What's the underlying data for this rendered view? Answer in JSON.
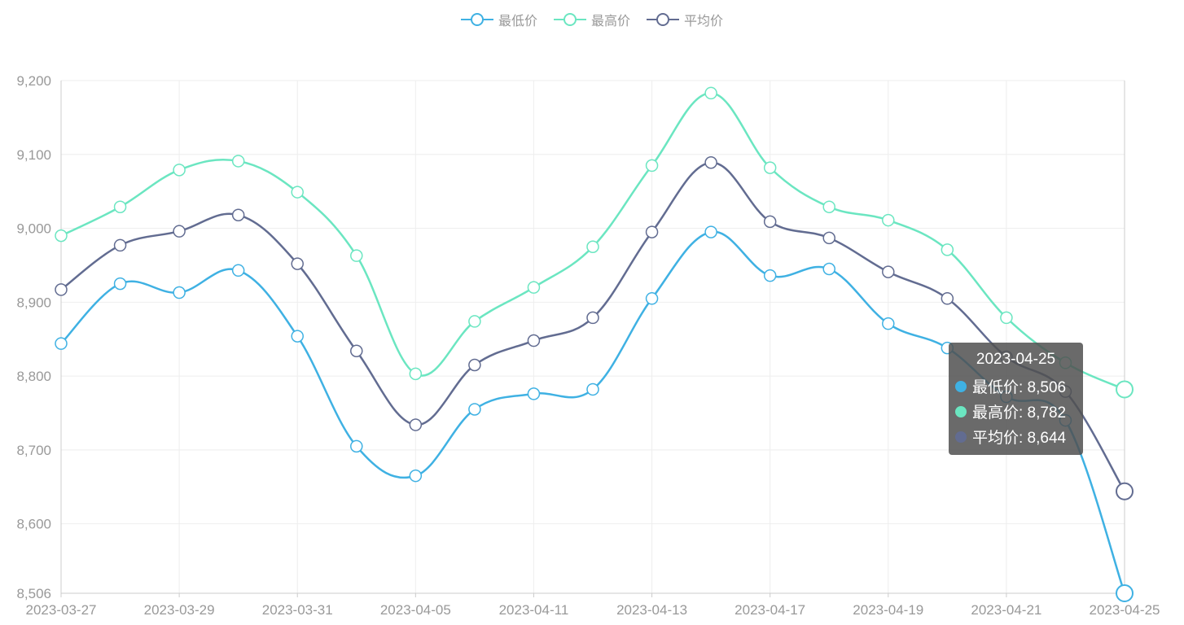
{
  "colors": {
    "low": "#3fb1e3",
    "high": "#6be6c1",
    "avg": "#626c91",
    "grid": "#eeeeee",
    "axis": "#cccccc",
    "axis_text": "#999999",
    "tooltip_bg": "rgba(80,80,80,0.85)"
  },
  "legend": [
    {
      "key": "low",
      "label": "最低价"
    },
    {
      "key": "high",
      "label": "最高价"
    },
    {
      "key": "avg",
      "label": "平均价"
    }
  ],
  "tooltip": {
    "title": "2023-04-25",
    "rows": [
      {
        "key": "low",
        "label": "最低价: 8,506"
      },
      {
        "key": "high",
        "label": "最高价: 8,782"
      },
      {
        "key": "avg",
        "label": "平均价: 8,644"
      }
    ]
  },
  "chart_data": {
    "type": "line",
    "x_tick_labels": [
      "2023-03-27",
      "2023-03-29",
      "2023-03-31",
      "2023-04-05",
      "2023-04-11",
      "2023-04-13",
      "2023-04-17",
      "2023-04-19",
      "2023-04-21",
      "2023-04-25"
    ],
    "x_point_count": 19,
    "y_ticks": [
      "8,506",
      "8,600",
      "8,700",
      "8,800",
      "8,900",
      "9,000",
      "9,100",
      "9,200"
    ],
    "y_tick_values": [
      8506,
      8600,
      8700,
      8800,
      8900,
      9000,
      9100,
      9200
    ],
    "ylim": [
      8506,
      9200
    ],
    "grid": true,
    "legend_position": "top-center",
    "smooth": true,
    "series": [
      {
        "key": "low",
        "name": "最低价",
        "values": [
          8844,
          8925,
          8913,
          8943,
          8854,
          8705,
          8665,
          8755,
          8776,
          8782,
          8905,
          8995,
          8936,
          8945,
          8871,
          8838,
          8772,
          8740,
          8506
        ]
      },
      {
        "key": "high",
        "name": "最高价",
        "values": [
          8990,
          9029,
          9079,
          9091,
          9049,
          8963,
          8803,
          8874,
          8920,
          8975,
          9085,
          9183,
          9082,
          9029,
          9011,
          8971,
          8879,
          8818,
          8782
        ]
      },
      {
        "key": "avg",
        "name": "平均价",
        "values": [
          8917,
          8977,
          8996,
          9018,
          8952,
          8834,
          8734,
          8815,
          8848,
          8879,
          8995,
          9089,
          9009,
          8987,
          8941,
          8905,
          8826,
          8779,
          8644
        ]
      }
    ]
  }
}
